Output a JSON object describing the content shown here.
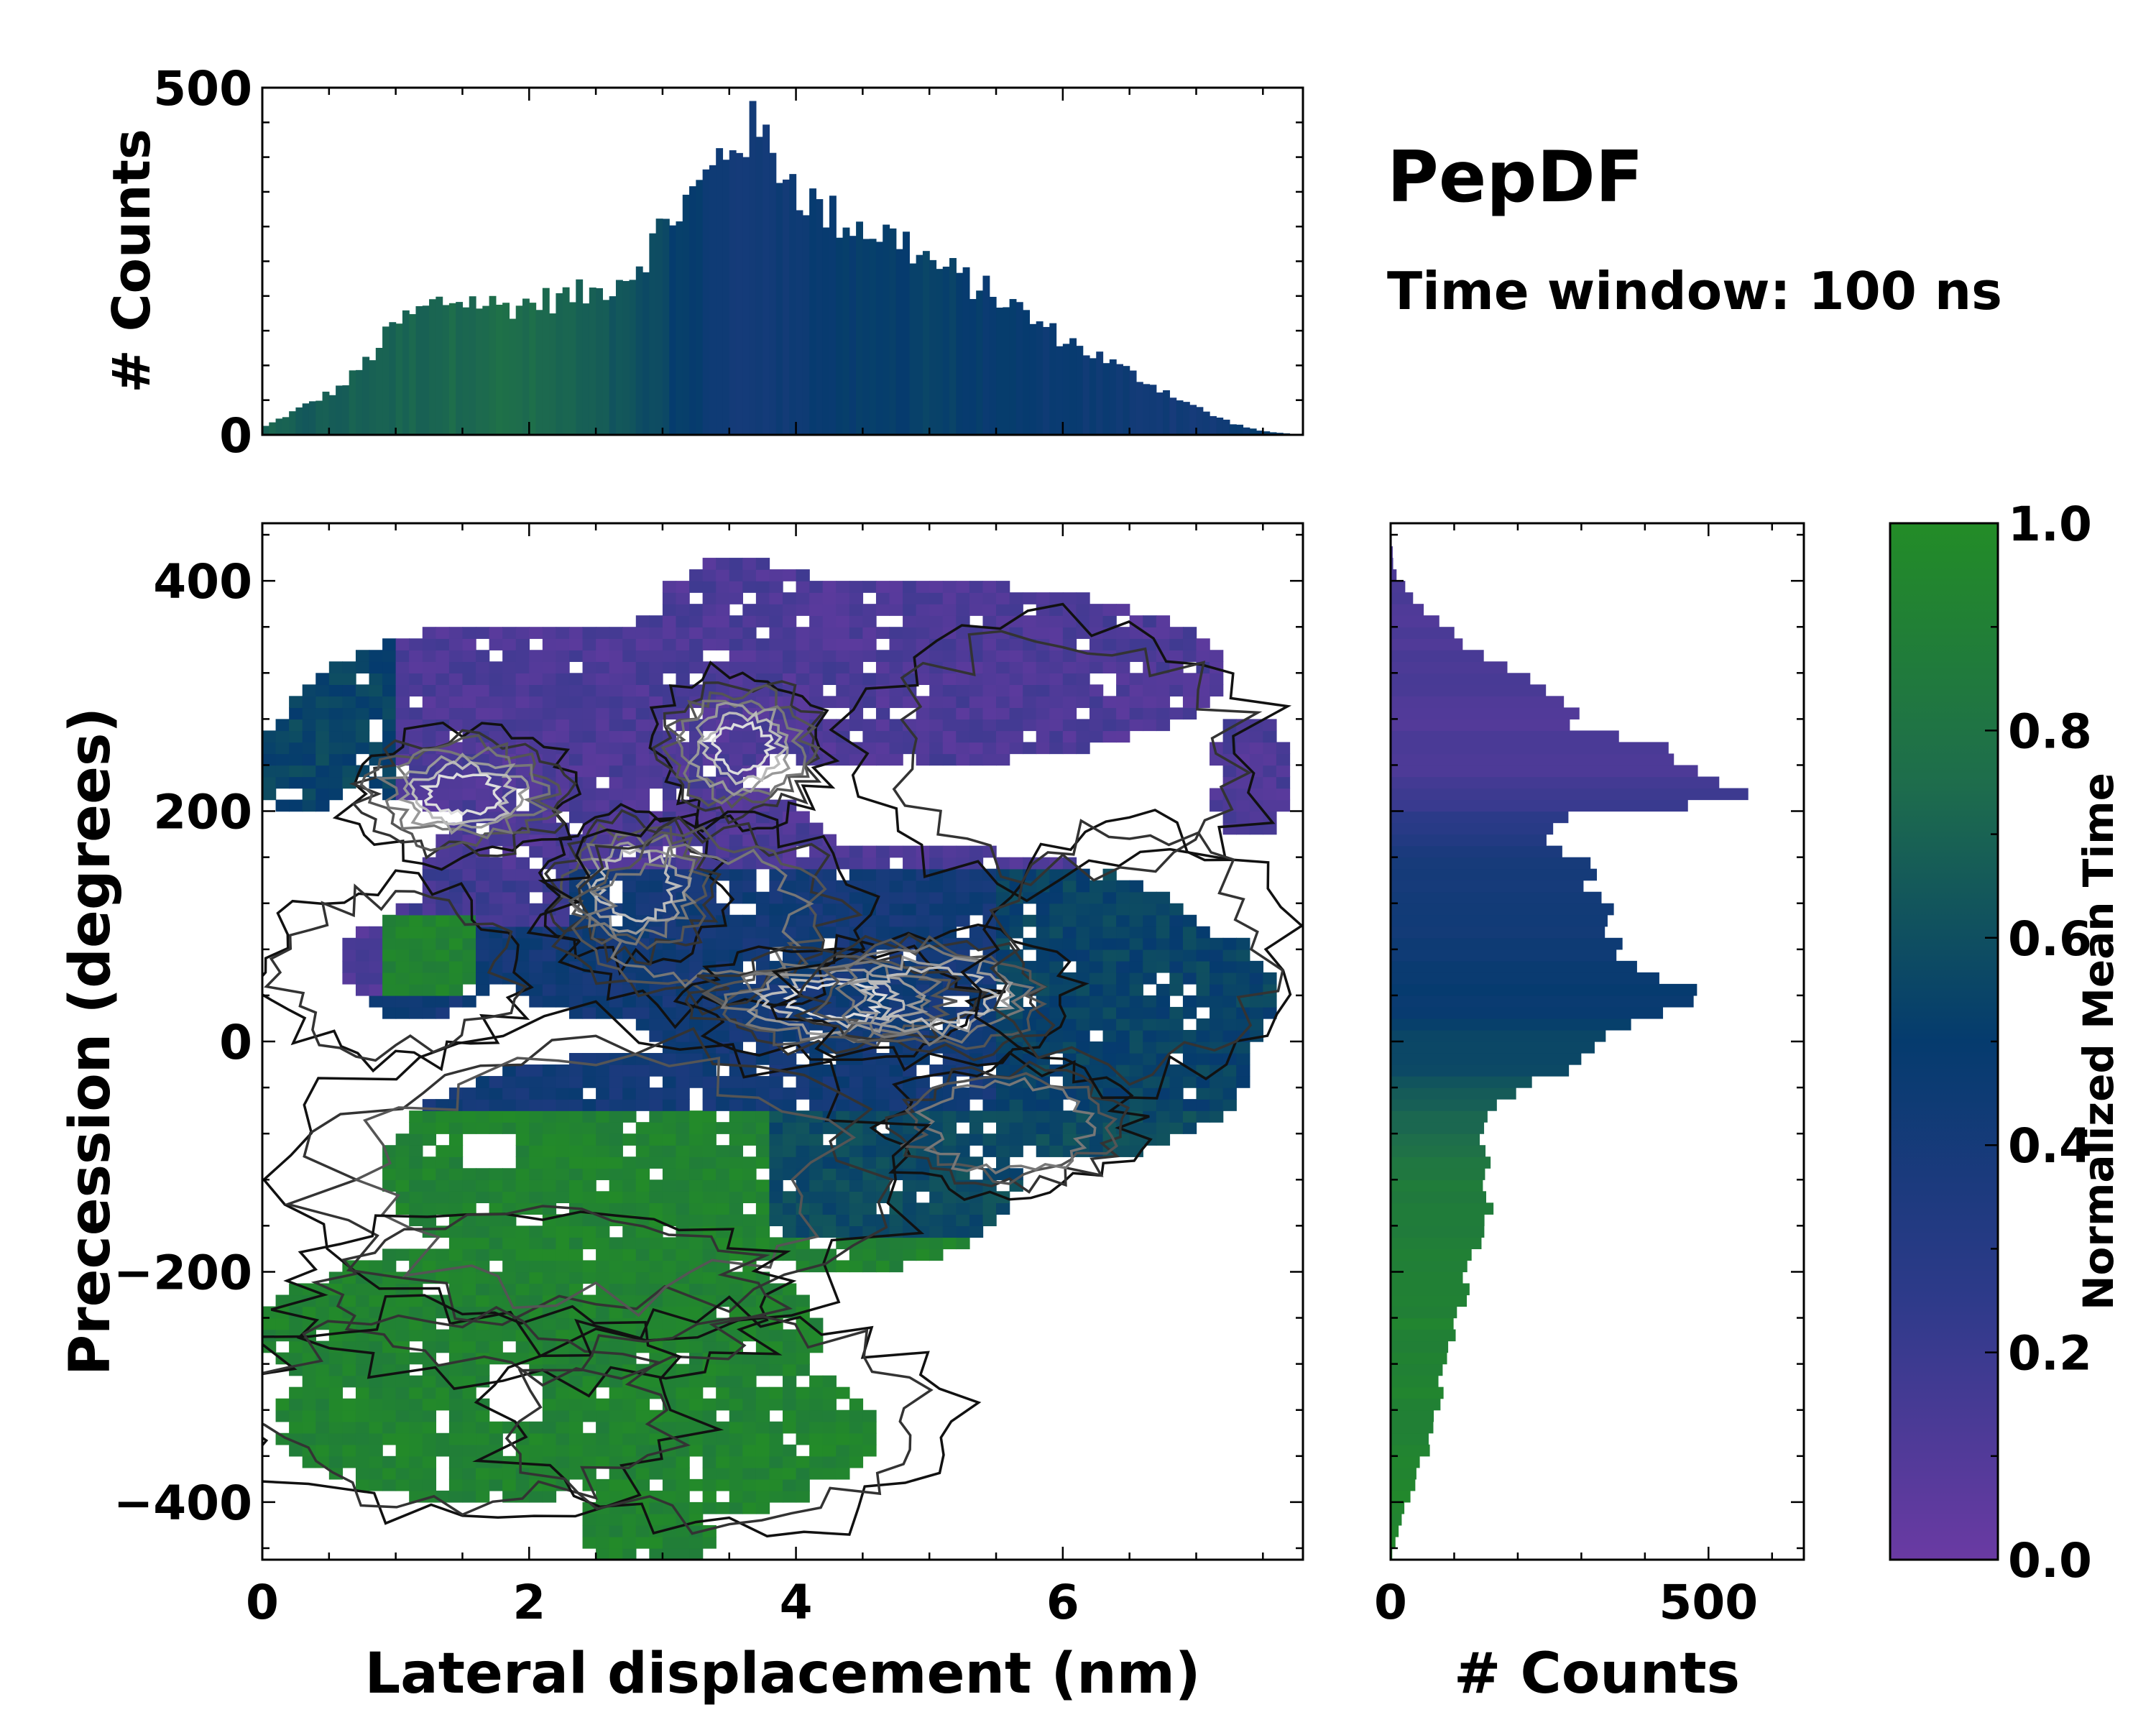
{
  "chart_data": [
    {
      "id": "top_hist",
      "type": "bar",
      "title": "",
      "xlabel": "",
      "ylabel": "# Counts",
      "xlim": [
        0,
        7.8
      ],
      "ylim": [
        0,
        500
      ],
      "yticks": [
        0,
        500
      ],
      "bin_width": 0.05,
      "color_scale": "normalized_mean_time",
      "profile": {
        "x": [
          0,
          0.3,
          0.6,
          0.8,
          1.0,
          1.3,
          1.5,
          1.8,
          2.0,
          2.3,
          2.5,
          2.8,
          3.0,
          3.3,
          3.5,
          3.65,
          3.8,
          4.0,
          4.2,
          4.5,
          4.8,
          5.0,
          5.3,
          5.6,
          5.9,
          6.2,
          6.5,
          6.8,
          7.1,
          7.3,
          7.5,
          7.8
        ],
        "counts": [
          10,
          40,
          70,
          110,
          160,
          190,
          195,
          185,
          190,
          200,
          205,
          240,
          300,
          360,
          420,
          440,
          415,
          360,
          320,
          300,
          280,
          250,
          220,
          190,
          150,
          120,
          90,
          60,
          30,
          15,
          5,
          0
        ],
        "mean_time": [
          0.7,
          0.66,
          0.67,
          0.7,
          0.7,
          0.72,
          0.74,
          0.76,
          0.74,
          0.7,
          0.66,
          0.6,
          0.55,
          0.48,
          0.42,
          0.4,
          0.42,
          0.46,
          0.48,
          0.5,
          0.52,
          0.55,
          0.5,
          0.48,
          0.46,
          0.45,
          0.44,
          0.42,
          0.42,
          0.45,
          0.5,
          0.5
        ]
      }
    },
    {
      "id": "main_map",
      "type": "heatmap",
      "xlabel": "Lateral displacement (nm)",
      "ylabel": "Precession (degrees)",
      "xlim": [
        0,
        7.8
      ],
      "ylim": [
        -450,
        450
      ],
      "xticks": [
        0,
        2,
        4,
        6
      ],
      "xtick_labels": [
        "0",
        "2",
        "4",
        "6"
      ],
      "yticks": [
        -400,
        -200,
        0,
        200,
        400
      ],
      "ytick_labels": [
        "−400",
        "−200",
        "0",
        "200",
        "400"
      ],
      "cell": {
        "dx": 0.1,
        "dy": 10
      },
      "density_blobs": [
        {
          "x": 1.5,
          "y": 215,
          "sx": 0.45,
          "sy": 30,
          "w": 1.0
        },
        {
          "x": 3.6,
          "y": 255,
          "sx": 0.35,
          "sy": 35,
          "w": 1.0
        },
        {
          "x": 2.8,
          "y": 135,
          "sx": 0.35,
          "sy": 35,
          "w": 0.85
        },
        {
          "x": 3.3,
          "y": 110,
          "sx": 0.6,
          "sy": 45,
          "w": 0.6
        },
        {
          "x": 4.3,
          "y": 35,
          "sx": 0.6,
          "sy": 25,
          "w": 0.95
        },
        {
          "x": 5.0,
          "y": 40,
          "sx": 0.55,
          "sy": 30,
          "w": 0.8
        },
        {
          "x": 5.6,
          "y": -75,
          "sx": 0.5,
          "sy": 30,
          "w": 0.5
        },
        {
          "x": 2.5,
          "y": -120,
          "sx": 1.2,
          "sy": 70,
          "w": 0.4
        },
        {
          "x": 2.1,
          "y": -220,
          "sx": 1.0,
          "sy": 40,
          "w": 0.35
        },
        {
          "x": 1.5,
          "y": -320,
          "sx": 0.9,
          "sy": 50,
          "w": 0.3
        },
        {
          "x": 3.5,
          "y": -330,
          "sx": 0.9,
          "sy": 50,
          "w": 0.3
        },
        {
          "x": 6.0,
          "y": 250,
          "sx": 0.8,
          "sy": 60,
          "w": 0.35
        },
        {
          "x": 6.5,
          "y": 80,
          "sx": 0.6,
          "sy": 60,
          "w": 0.3
        },
        {
          "x": 1.0,
          "y": 60,
          "sx": 0.5,
          "sy": 40,
          "w": 0.25
        }
      ],
      "time_regions": [
        {
          "label": "upper band",
          "y_range": [
            140,
            410
          ],
          "mean_time": 0.12
        },
        {
          "label": "middle band",
          "y_range": [
            -60,
            140
          ],
          "mean_time": 0.45
        },
        {
          "label": "lower region",
          "y_range": [
            -450,
            -60
          ],
          "mean_time": 0.93
        }
      ]
    },
    {
      "id": "right_hist",
      "type": "bar",
      "orientation": "horizontal",
      "xlabel": "# Counts",
      "ylabel": "",
      "xlim": [
        0,
        650
      ],
      "xticks": [
        0,
        500
      ],
      "ylim": [
        -450,
        450
      ],
      "bin_width": 10,
      "profile": {
        "y": [
          -450,
          -420,
          -400,
          -380,
          -350,
          -300,
          -250,
          -200,
          -150,
          -120,
          -100,
          -80,
          -50,
          -20,
          0,
          20,
          40,
          50,
          70,
          90,
          110,
          130,
          150,
          170,
          180,
          200,
          210,
          230,
          250,
          270,
          300,
          330,
          370,
          400,
          410,
          450
        ],
        "counts": [
          0,
          15,
          25,
          40,
          60,
          80,
          100,
          120,
          150,
          160,
          150,
          140,
          180,
          280,
          300,
          380,
          480,
          470,
          380,
          330,
          360,
          340,
          300,
          270,
          240,
          300,
          580,
          480,
          470,
          300,
          250,
          160,
          60,
          15,
          5,
          0
        ],
        "mean_time": [
          0.95,
          0.95,
          0.95,
          0.94,
          0.93,
          0.93,
          0.92,
          0.9,
          0.88,
          0.85,
          0.82,
          0.75,
          0.65,
          0.58,
          0.55,
          0.5,
          0.48,
          0.46,
          0.45,
          0.44,
          0.42,
          0.4,
          0.38,
          0.35,
          0.32,
          0.25,
          0.18,
          0.15,
          0.12,
          0.12,
          0.12,
          0.12,
          0.12,
          0.12,
          0.12,
          0.12
        ]
      }
    },
    {
      "id": "colorbar",
      "type": "colorbar",
      "label": "Normalized Mean Time",
      "range": [
        0.0,
        1.0
      ],
      "ticks": [
        0.0,
        0.2,
        0.4,
        0.6,
        0.8,
        1.0
      ],
      "tick_labels": [
        "0.0",
        "0.2",
        "0.4",
        "0.6",
        "0.8",
        "1.0"
      ],
      "colormap": [
        {
          "t": 0.0,
          "color": "#6a3aa3"
        },
        {
          "t": 0.25,
          "color": "#2e3a8a"
        },
        {
          "t": 0.5,
          "color": "#053b6e"
        },
        {
          "t": 0.75,
          "color": "#1e6d4c"
        },
        {
          "t": 1.0,
          "color": "#238c27"
        }
      ]
    }
  ],
  "annotations": {
    "title": "PepDF",
    "subtitle": "Time window: 100 ns"
  }
}
